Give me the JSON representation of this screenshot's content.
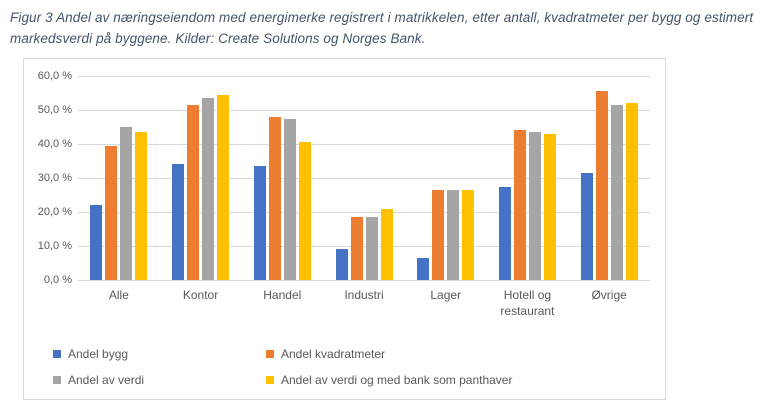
{
  "figure_caption": "Figur 3 Andel av næringseiendom med energimerke registrert i matrikkelen, etter antall, kvadratmeter per bygg og estimert markedsverdi på byggene. Kilder: Create Solutions og Norges Bank.",
  "colors": {
    "blue": "#4472C4",
    "orange": "#ED7D31",
    "gray": "#A5A5A5",
    "yellow": "#FFC000",
    "gridline": "#D9D9D9",
    "axis_text": "#595959",
    "caption_text": "#44546A"
  },
  "chart_data": {
    "type": "bar",
    "categories": [
      "Alle",
      "Kontor",
      "Handel",
      "Industri",
      "Lager",
      "Hotell og restaurant",
      "Øvrige"
    ],
    "series": [
      {
        "name": "Andel bygg",
        "color": "#4472C4",
        "values": [
          22,
          34,
          33.5,
          9,
          6.5,
          27.5,
          31.5
        ]
      },
      {
        "name": "Andel kvadratmeter",
        "color": "#ED7D31",
        "values": [
          39.5,
          51.5,
          48,
          18.5,
          26.5,
          44,
          55.5
        ]
      },
      {
        "name": "Andel av verdi",
        "color": "#A5A5A5",
        "values": [
          45,
          53.5,
          47.5,
          18.5,
          26.5,
          43.5,
          51.5
        ]
      },
      {
        "name": "Andel av verdi og med bank som panthaver",
        "color": "#FFC000",
        "values": [
          43.5,
          54.5,
          40.5,
          21,
          26.5,
          43,
          52
        ]
      }
    ],
    "ylim": [
      0,
      60
    ],
    "ytick_step": 10,
    "ytick_labels": [
      "0,0 %",
      "10,0 %",
      "20,0 %",
      "30,0 %",
      "40,0 %",
      "50,0 %",
      "60,0 %"
    ],
    "grid": true,
    "legend_position": "bottom-left-two-columns",
    "xlabel": "",
    "ylabel": ""
  }
}
